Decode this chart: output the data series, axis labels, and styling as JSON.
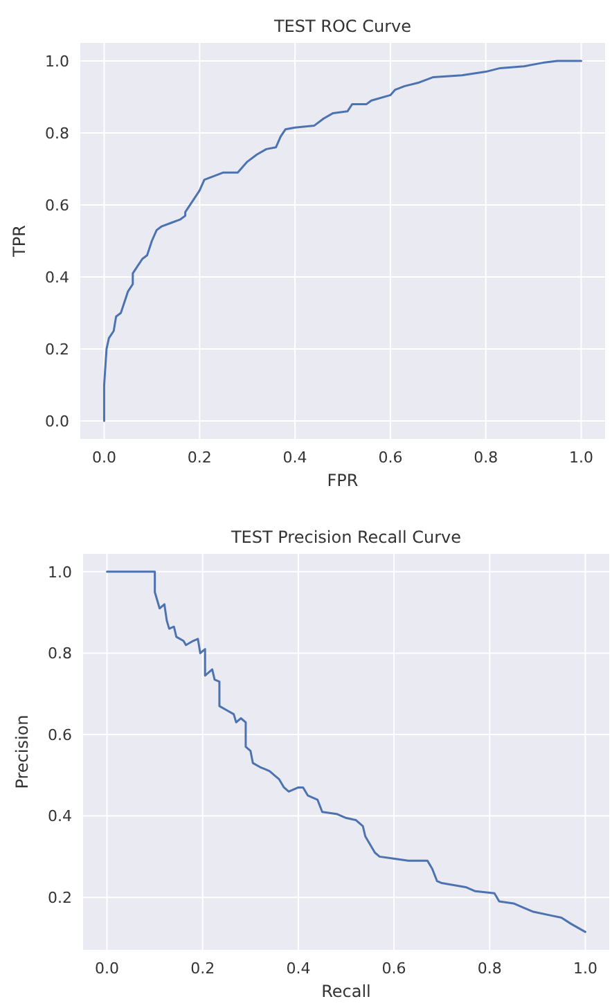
{
  "chart_data": [
    {
      "type": "line",
      "title": "TEST ROC Curve",
      "xlabel": "FPR",
      "ylabel": "TPR",
      "xlim": [
        -0.05,
        1.05
      ],
      "ylim": [
        -0.05,
        1.05
      ],
      "xticks": [
        {
          "value": 0,
          "label": "0.0"
        },
        {
          "value": 0.2,
          "label": "0.2"
        },
        {
          "value": 0.4,
          "label": "0.4"
        },
        {
          "value": 0.6,
          "label": "0.6"
        },
        {
          "value": 0.8,
          "label": "0.8"
        },
        {
          "value": 1,
          "label": "1.0"
        }
      ],
      "yticks": [
        {
          "value": 0,
          "label": "0.0"
        },
        {
          "value": 0.2,
          "label": "0.2"
        },
        {
          "value": 0.4,
          "label": "0.4"
        },
        {
          "value": 0.6,
          "label": "0.6"
        },
        {
          "value": 0.8,
          "label": "0.8"
        },
        {
          "value": 1,
          "label": "1.0"
        }
      ],
      "grid": true,
      "series": [
        {
          "color": "#4c72b0",
          "x": [
            0,
            0,
            0.005,
            0.01,
            0.02,
            0.025,
            0.035,
            0.045,
            0.05,
            0.06,
            0.06,
            0.07,
            0.08,
            0.09,
            0.1,
            0.11,
            0.12,
            0.14,
            0.16,
            0.17,
            0.17,
            0.19,
            0.2,
            0.21,
            0.23,
            0.25,
            0.28,
            0.3,
            0.32,
            0.34,
            0.36,
            0.37,
            0.38,
            0.4,
            0.44,
            0.46,
            0.48,
            0.51,
            0.52,
            0.55,
            0.56,
            0.6,
            0.61,
            0.63,
            0.66,
            0.69,
            0.75,
            0.8,
            0.83,
            0.88,
            0.92,
            0.95,
            1
          ],
          "values": [
            0,
            0.1,
            0.2,
            0.23,
            0.25,
            0.29,
            0.3,
            0.34,
            0.36,
            0.38,
            0.41,
            0.43,
            0.45,
            0.46,
            0.5,
            0.53,
            0.54,
            0.55,
            0.56,
            0.57,
            0.58,
            0.62,
            0.64,
            0.67,
            0.68,
            0.69,
            0.69,
            0.72,
            0.74,
            0.755,
            0.76,
            0.79,
            0.81,
            0.815,
            0.82,
            0.84,
            0.855,
            0.86,
            0.88,
            0.88,
            0.89,
            0.905,
            0.92,
            0.93,
            0.94,
            0.955,
            0.96,
            0.97,
            0.98,
            0.985,
            0.995,
            1,
            1
          ]
        }
      ]
    },
    {
      "type": "line",
      "title": "TEST Precision Recall Curve",
      "xlabel": "Recall",
      "ylabel": "Precision",
      "xlim": [
        -0.05,
        1.05
      ],
      "ylim": [
        0.071,
        1.044
      ],
      "xticks": [
        {
          "value": 0,
          "label": "0.0"
        },
        {
          "value": 0.2,
          "label": "0.2"
        },
        {
          "value": 0.4,
          "label": "0.4"
        },
        {
          "value": 0.6,
          "label": "0.6"
        },
        {
          "value": 0.8,
          "label": "0.8"
        },
        {
          "value": 1,
          "label": "1.0"
        }
      ],
      "yticks": [
        {
          "value": 0.2,
          "label": "0.2"
        },
        {
          "value": 0.4,
          "label": "0.4"
        },
        {
          "value": 0.6,
          "label": "0.6"
        },
        {
          "value": 0.8,
          "label": "0.8"
        },
        {
          "value": 1,
          "label": "1.0"
        }
      ],
      "grid": true,
      "series": [
        {
          "color": "#4c72b0",
          "x": [
            0,
            0.1,
            0.1,
            0.11,
            0.12,
            0.125,
            0.13,
            0.14,
            0.145,
            0.16,
            0.165,
            0.18,
            0.19,
            0.195,
            0.205,
            0.205,
            0.22,
            0.225,
            0.235,
            0.235,
            0.25,
            0.265,
            0.27,
            0.28,
            0.29,
            0.29,
            0.3,
            0.305,
            0.32,
            0.33,
            0.34,
            0.35,
            0.36,
            0.37,
            0.38,
            0.4,
            0.41,
            0.42,
            0.44,
            0.45,
            0.48,
            0.5,
            0.52,
            0.535,
            0.54,
            0.55,
            0.56,
            0.57,
            0.6,
            0.63,
            0.67,
            0.68,
            0.69,
            0.7,
            0.75,
            0.77,
            0.81,
            0.82,
            0.85,
            0.87,
            0.89,
            0.93,
            0.95,
            0.97,
            1
          ],
          "values": [
            1,
            1,
            0.95,
            0.91,
            0.92,
            0.88,
            0.86,
            0.865,
            0.84,
            0.83,
            0.82,
            0.83,
            0.835,
            0.8,
            0.81,
            0.745,
            0.76,
            0.735,
            0.73,
            0.67,
            0.66,
            0.65,
            0.63,
            0.64,
            0.63,
            0.57,
            0.56,
            0.53,
            0.52,
            0.515,
            0.51,
            0.5,
            0.49,
            0.47,
            0.46,
            0.47,
            0.47,
            0.45,
            0.44,
            0.41,
            0.405,
            0.395,
            0.39,
            0.375,
            0.35,
            0.33,
            0.31,
            0.3,
            0.295,
            0.29,
            0.29,
            0.27,
            0.24,
            0.235,
            0.225,
            0.215,
            0.21,
            0.19,
            0.185,
            0.175,
            0.165,
            0.155,
            0.15,
            0.135,
            0.115
          ]
        }
      ]
    }
  ]
}
